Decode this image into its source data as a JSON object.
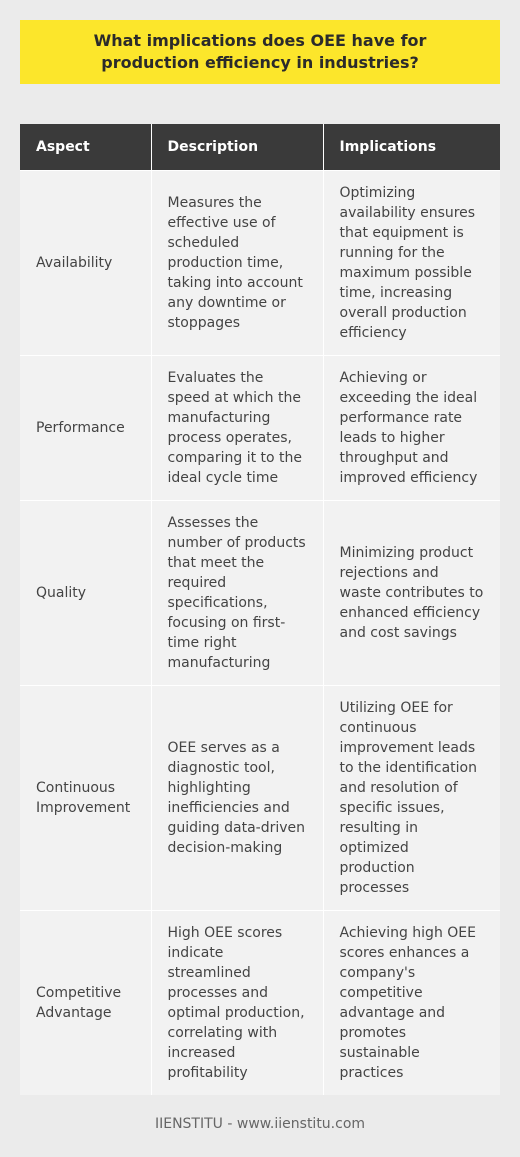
{
  "title": "What implications does OEE have for production efficiency in industries?",
  "table": {
    "headers": [
      "Aspect",
      "Description",
      "Implications"
    ],
    "rows": [
      {
        "aspect": "Availability",
        "description": "Measures the effective use of scheduled production time, taking into account any downtime or stoppages",
        "implications": "Optimizing availability ensures that equipment is running for the maximum possible time, increasing overall production efficiency"
      },
      {
        "aspect": "Performance",
        "description": "Evaluates the speed at which the manufacturing process operates, comparing it to the ideal cycle time",
        "implications": "Achieving or exceeding the ideal performance rate leads to higher throughput and improved efficiency"
      },
      {
        "aspect": "Quality",
        "description": "Assesses the number of products that meet the required specifications, focusing on first-time right manufacturing",
        "implications": "Minimizing product rejections and waste contributes to enhanced efficiency and cost savings"
      },
      {
        "aspect": "Continuous Improvement",
        "description": "OEE serves as a diagnostic tool, highlighting inefficiencies and guiding data-driven decision-making",
        "implications": "Utilizing OEE for continuous improvement leads to the identification and resolution of specific issues, resulting in optimized production processes"
      },
      {
        "aspect": "Competitive Advantage",
        "description": "High OEE scores indicate streamlined processes and optimal production, correlating with increased profitability",
        "implications": "Achieving high OEE scores enhances a company's competitive advantage and promotes sustainable practices"
      }
    ]
  },
  "footer": "IIENSTITU - www.iienstitu.com",
  "colors": {
    "title_background": "#fce62b",
    "header_background": "#3a3a3a",
    "page_background": "#ebebeb"
  }
}
